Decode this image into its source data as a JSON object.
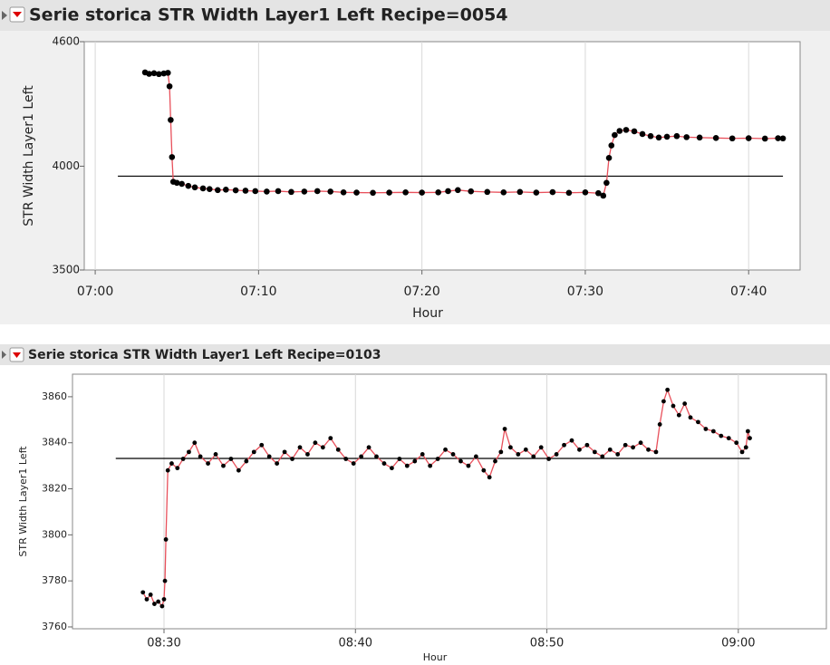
{
  "chart_data": [
    {
      "type": "line",
      "title": "Serie storica STR Width Layer1 Left Recipe=0054",
      "x_label": "Hour",
      "y_label": "STR Width Layer1 Left",
      "color": "#e8505b",
      "marker_color": "#000000",
      "grid": "x",
      "reference_line": 3952,
      "xlim": [
        419.33,
        463.15
      ],
      "xticks": [
        {
          "value": 420,
          "label": "07:00"
        },
        {
          "value": 430,
          "label": "07:10"
        },
        {
          "value": 440,
          "label": "07:20"
        },
        {
          "value": 450,
          "label": "07:30"
        },
        {
          "value": 460,
          "label": "07:40"
        }
      ],
      "ylim": [
        3500,
        4600
      ],
      "yticks": [
        3500,
        4000,
        4600
      ],
      "x": [
        423.05,
        423.3,
        423.6,
        423.9,
        424.2,
        424.45,
        424.55,
        424.62,
        424.7,
        424.78,
        425.0,
        425.3,
        425.7,
        426.1,
        426.6,
        427.0,
        427.5,
        428.0,
        428.6,
        429.2,
        429.8,
        430.5,
        431.2,
        432.0,
        432.8,
        433.6,
        434.4,
        435.2,
        436.0,
        437.0,
        438.0,
        439.0,
        440.0,
        441.0,
        441.6,
        442.2,
        443.0,
        444.0,
        445.0,
        446.0,
        447.0,
        448.0,
        449.0,
        450.0,
        450.8,
        451.1,
        451.3,
        451.45,
        451.6,
        451.8,
        452.1,
        452.5,
        453.0,
        453.5,
        454.0,
        454.5,
        455.0,
        455.6,
        456.2,
        457.0,
        458.0,
        459.0,
        460.0,
        461.0,
        461.8,
        462.1
      ],
      "values": [
        4452,
        4445,
        4448,
        4444,
        4447,
        4450,
        4385,
        4223,
        4044,
        3925,
        3920,
        3915,
        3905,
        3898,
        3893,
        3890,
        3885,
        3887,
        3884,
        3882,
        3880,
        3878,
        3880,
        3876,
        3878,
        3880,
        3878,
        3874,
        3873,
        3872,
        3873,
        3874,
        3873,
        3874,
        3880,
        3885,
        3879,
        3876,
        3874,
        3876,
        3873,
        3875,
        3872,
        3874,
        3870,
        3858,
        3920,
        4040,
        4100,
        4150,
        4170,
        4175,
        4168,
        4155,
        4145,
        4138,
        4142,
        4145,
        4140,
        4138,
        4136,
        4134,
        4135,
        4133,
        4135,
        4134
      ]
    },
    {
      "type": "line",
      "title": "Serie storica STR Width Layer1 Left Recipe=0103",
      "x_label": "Hour",
      "y_label": "STR Width Layer1 Left",
      "color": "#e8505b",
      "marker_color": "#000000",
      "grid": "x",
      "reference_line": 3833.2,
      "xlim": [
        505.22,
        544.6
      ],
      "xticks": [
        {
          "value": 510,
          "label": "08:30"
        },
        {
          "value": 520,
          "label": "08:40"
        },
        {
          "value": 530,
          "label": "08:50"
        },
        {
          "value": 540,
          "label": "09:00"
        }
      ],
      "ylim": [
        3759.2,
        3869.8
      ],
      "yticks": [
        3760,
        3780,
        3800,
        3820,
        3840,
        3860
      ],
      "x": [
        508.9,
        509.1,
        509.3,
        509.5,
        509.7,
        509.9,
        510.0,
        510.05,
        510.1,
        510.2,
        510.4,
        510.7,
        511.0,
        511.3,
        511.6,
        511.9,
        512.3,
        512.7,
        513.1,
        513.5,
        513.9,
        514.3,
        514.7,
        515.1,
        515.5,
        515.9,
        516.3,
        516.7,
        517.1,
        517.5,
        517.9,
        518.3,
        518.7,
        519.1,
        519.5,
        519.9,
        520.3,
        520.7,
        521.1,
        521.5,
        521.9,
        522.3,
        522.7,
        523.1,
        523.5,
        523.9,
        524.3,
        524.7,
        525.1,
        525.5,
        525.9,
        526.3,
        526.7,
        527.0,
        527.3,
        527.6,
        527.8,
        528.1,
        528.5,
        528.9,
        529.3,
        529.7,
        530.1,
        530.5,
        530.9,
        531.3,
        531.7,
        532.1,
        532.5,
        532.9,
        533.3,
        533.7,
        534.1,
        534.5,
        534.9,
        535.3,
        535.7,
        535.9,
        536.1,
        536.3,
        536.6,
        536.9,
        537.2,
        537.5,
        537.9,
        538.3,
        538.7,
        539.1,
        539.5,
        539.9,
        540.2,
        540.4,
        540.5,
        540.6
      ],
      "values": [
        3775,
        3772,
        3774,
        3770,
        3771,
        3769,
        3772,
        3780,
        3798,
        3828,
        3831,
        3829,
        3833,
        3836,
        3840,
        3834,
        3831,
        3835,
        3830,
        3833,
        3828,
        3832,
        3836,
        3839,
        3834,
        3831,
        3836,
        3833,
        3838,
        3835,
        3840,
        3838,
        3842,
        3837,
        3833,
        3831,
        3834,
        3838,
        3834,
        3831,
        3829,
        3833,
        3830,
        3832,
        3835,
        3830,
        3833,
        3837,
        3835,
        3832,
        3830,
        3834,
        3828,
        3825,
        3832,
        3836,
        3846,
        3838,
        3835,
        3837,
        3834,
        3838,
        3833,
        3835,
        3839,
        3841,
        3837,
        3839,
        3836,
        3834,
        3837,
        3835,
        3839,
        3838,
        3840,
        3837,
        3836,
        3848,
        3858,
        3863,
        3856,
        3852,
        3857,
        3851,
        3849,
        3846,
        3845,
        3843,
        3842,
        3840,
        3836,
        3838,
        3845,
        3842
      ]
    }
  ]
}
